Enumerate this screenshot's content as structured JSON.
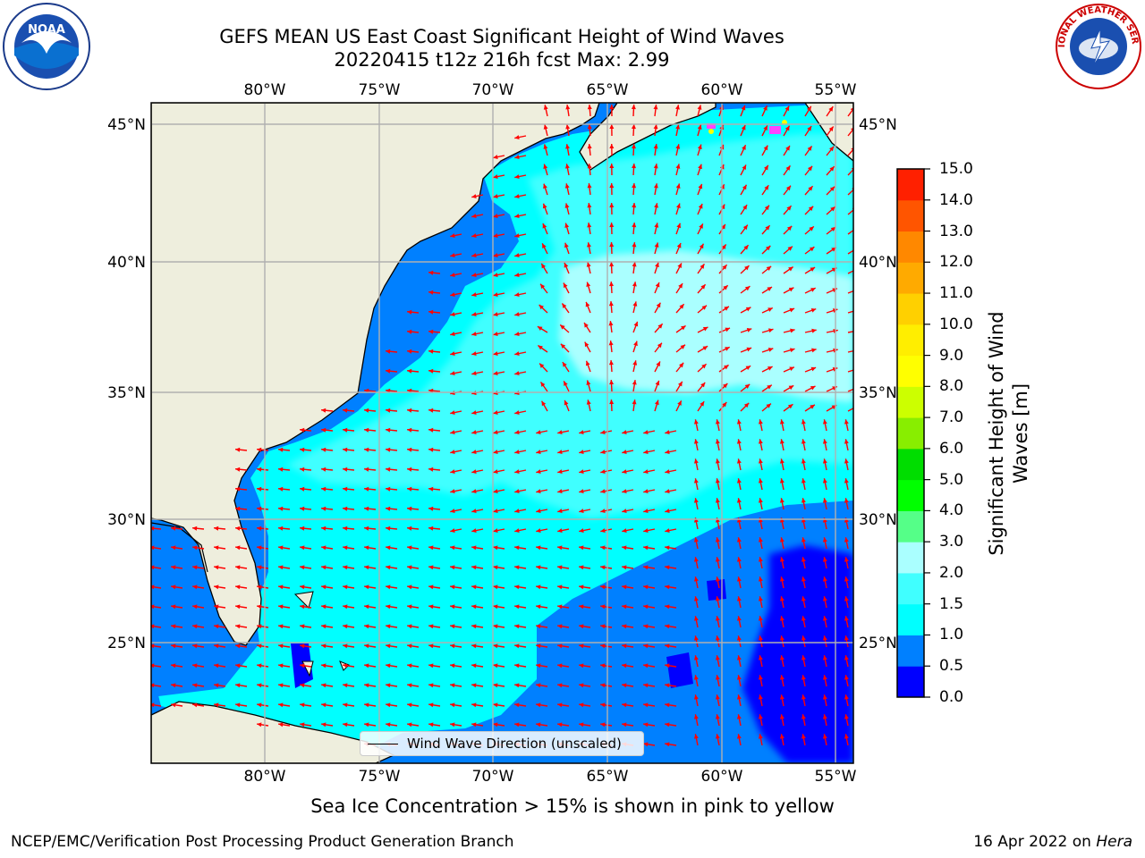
{
  "title": {
    "line1": "GEFS MEAN US East Coast Significant Height of Wind Waves",
    "line2": "20220415 t12z 216h fcst   Max: 2.99"
  },
  "logos": {
    "left": "noaa-logo",
    "left_text": "NOAA",
    "right": "national-weather-service-logo",
    "right_text": "NATIONAL WEATHER SERVICE"
  },
  "map": {
    "lon_ticks": [
      "80°W",
      "75°W",
      "70°W",
      "65°W",
      "60°W",
      "55°W"
    ],
    "lat_ticks": [
      "45°N",
      "40°N",
      "35°N",
      "30°N",
      "25°N"
    ],
    "lon_range": [
      -85,
      -54.5
    ],
    "lat_range": [
      20.5,
      46
    ],
    "colors": {
      "land": "#eeeedd",
      "coast": "#000000",
      "grid": "#b0b0b0",
      "arrow": "#ff0000",
      "ice_pink": "#ff44ff",
      "ice_yellow": "#ffff00"
    },
    "legend": "Wind Wave Direction (unscaled)"
  },
  "colorbar": {
    "title_line1": "Significant Height of Wind",
    "title_line2": "Waves [m]",
    "labels": [
      "15.0",
      "14.0",
      "13.0",
      "12.0",
      "11.0",
      "10.0",
      "9.0",
      "8.0",
      "7.0",
      "6.0",
      "5.0",
      "4.0",
      "3.0",
      "2.0",
      "1.5",
      "1.0",
      "0.5",
      "0.0"
    ],
    "colors_bottom_to_top": [
      "#0000ff",
      "#0080ff",
      "#00ffff",
      "#40ffff",
      "#aaffff",
      "#55ff88",
      "#00ff00",
      "#00dd00",
      "#88ee00",
      "#ccff00",
      "#ffff00",
      "#ffee00",
      "#ffd000",
      "#ffaa00",
      "#ff8800",
      "#ff5500",
      "#ff2000"
    ]
  },
  "footnote": "Sea Ice Concentration > 15% is shown in pink to yellow",
  "credit_left": "NCEP/EMC/Verification Post Processing Product Generation Branch",
  "credit_date": "16 Apr 2022 on ",
  "credit_host": "Hera"
}
